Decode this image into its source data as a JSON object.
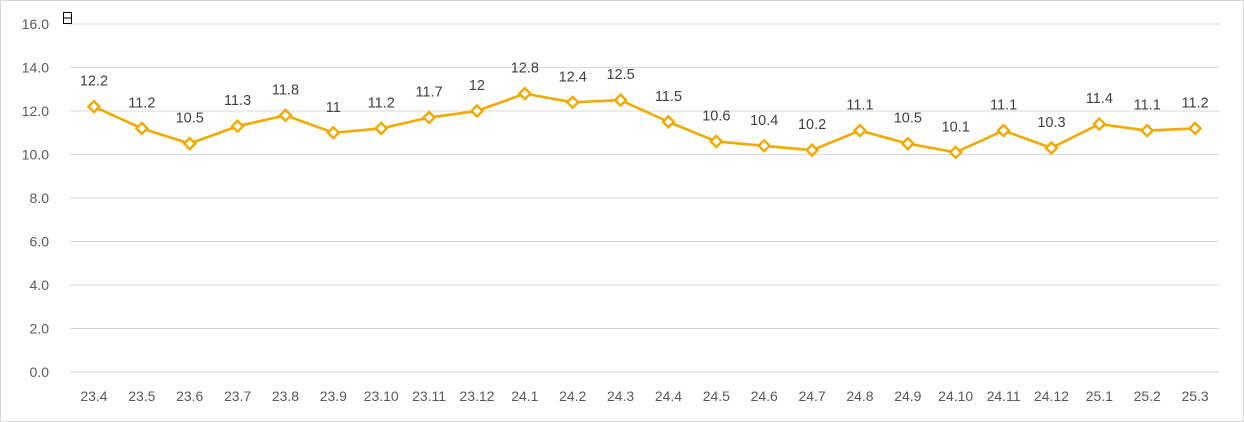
{
  "chart_data": {
    "type": "line",
    "title": "",
    "xlabel": "",
    "ylabel": "",
    "ylim": [
      0,
      16
    ],
    "y_ticks": [
      "0.0",
      "2.0",
      "4.0",
      "6.0",
      "8.0",
      "10.0",
      "12.0",
      "14.0",
      "16.0"
    ],
    "grid": true,
    "categories": [
      "23.4",
      "23.5",
      "23.6",
      "23.7",
      "23.8",
      "23.9",
      "23.10",
      "23.11",
      "23.12",
      "24.1",
      "24.2",
      "24.3",
      "24.4",
      "24.5",
      "24.6",
      "24.7",
      "24.8",
      "24.9",
      "24.10",
      "24.11",
      "24.12",
      "25.1",
      "25.2",
      "25.3"
    ],
    "series": [
      {
        "values": [
          12.2,
          11.2,
          10.5,
          11.3,
          11.8,
          11,
          11.2,
          11.7,
          12,
          12.8,
          12.4,
          12.5,
          11.5,
          10.6,
          10.4,
          10.2,
          11.1,
          10.5,
          10.1,
          11.1,
          10.3,
          11.4,
          11.1,
          11.2
        ],
        "labels": [
          "12.2",
          "11.2",
          "10.5",
          "11.3",
          "11.8",
          "11",
          "11.2",
          "11.7",
          "12",
          "12.8",
          "12.4",
          "12.5",
          "11.5",
          "10.6",
          "10.4",
          "10.2",
          "11.1",
          "10.5",
          "10.1",
          "11.1",
          "10.3",
          "11.4",
          "11.1",
          "11.2"
        ],
        "color": "#f2a900",
        "marker": "diamond"
      }
    ],
    "colors": {
      "grid": "#d9d9d9",
      "axis_text": "#595959",
      "label_text": "#404040"
    }
  }
}
